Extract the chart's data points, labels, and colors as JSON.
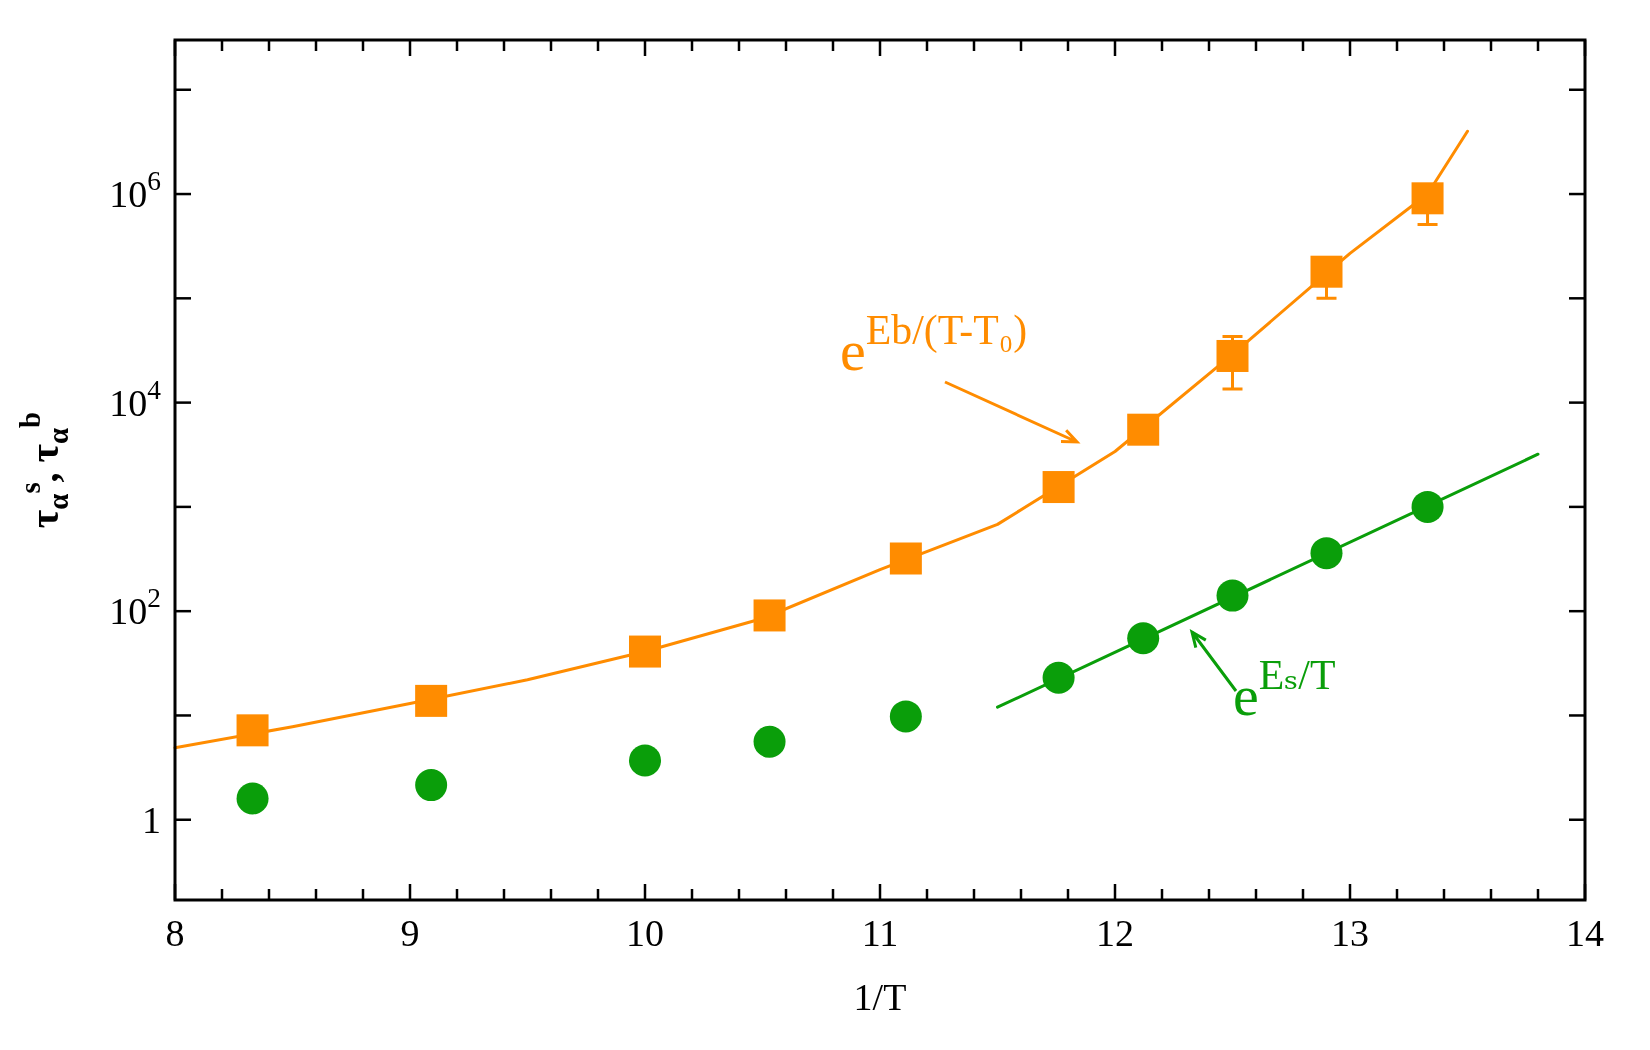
{
  "chart_data": {
    "type": "scatter",
    "xlabel": "1/T",
    "ylabel": "τ$_{α}$$^{s}$, τ$_{α}$$^{b}$",
    "log": "y",
    "grid": false,
    "xlim": [
      8,
      14
    ],
    "ylim": [
      0.17,
      30000000
    ],
    "xticks": [
      8,
      {
        "value": 8.2,
        "label": null
      },
      {
        "value": 8.4,
        "label": null
      },
      {
        "value": 8.6,
        "label": null
      },
      {
        "value": 8.8,
        "label": null
      },
      9,
      {
        "value": 9.2,
        "label": null
      },
      {
        "value": 9.4,
        "label": null
      },
      {
        "value": 9.6,
        "label": null
      },
      {
        "value": 9.8,
        "label": null
      },
      10,
      {
        "value": 10.2,
        "label": null
      },
      {
        "value": 10.4,
        "label": null
      },
      {
        "value": 10.6,
        "label": null
      },
      {
        "value": 10.8,
        "label": null
      },
      11,
      {
        "value": 11.2,
        "label": null
      },
      {
        "value": 11.4,
        "label": null
      },
      {
        "value": 11.6,
        "label": null
      },
      {
        "value": 11.8,
        "label": null
      },
      12,
      {
        "value": 12.2,
        "label": null
      },
      {
        "value": 12.4,
        "label": null
      },
      {
        "value": 12.6,
        "label": null
      },
      {
        "value": 12.8,
        "label": null
      },
      13,
      {
        "value": 13.2,
        "label": null
      },
      {
        "value": 13.4,
        "label": null
      },
      {
        "value": 13.6,
        "label": null
      },
      {
        "value": 13.8,
        "label": null
      },
      14
    ],
    "yticks": [
      1,
      {
        "value": 10,
        "label": null
      },
      {
        "value": 100,
        "label": "10$^{2}$"
      },
      {
        "value": 1000,
        "label": null
      },
      {
        "value": 10000,
        "label": "10$^{4}$"
      },
      {
        "value": 100000,
        "label": null
      },
      {
        "value": 1000000,
        "label": "10$^{6}$"
      },
      {
        "value": 10000000,
        "label": null
      }
    ],
    "series": [
      {
        "type": "line",
        "color": "#ff8c00",
        "line_style": "solid",
        "x": [
          8,
          8.5,
          9,
          9.5,
          10,
          10.5,
          11,
          11.5,
          12,
          12.5,
          13,
          13.33,
          13.5
        ],
        "values": [
          4.9,
          7.8,
          13,
          22,
          41,
          85,
          250,
          680,
          3400,
          29000,
          270000,
          1000000,
          4000000
        ]
      },
      {
        "type": "line",
        "color": "#0a9e0a",
        "line_style": "solid",
        "x": [
          11.5,
          13.8
        ],
        "values": [
          12,
          3200
        ]
      },
      {
        "color": "#ff8c00",
        "marker": "square",
        "x": [
          8.33,
          9.09,
          10,
          10.53,
          11.11,
          11.76,
          12.12,
          12.5,
          12.9,
          13.33
        ],
        "values": [
          7.2,
          13.8,
          41,
          91,
          320,
          1550,
          5500,
          28000,
          180000,
          910000
        ],
        "errors": [
          null,
          null,
          null,
          null,
          null,
          null,
          null,
          [
            13500,
            43000
          ],
          [
            100000,
            240000
          ],
          [
            510000,
            1200000
          ]
        ]
      },
      {
        "color": "#0a9e0a",
        "marker": "circle",
        "x": [
          8.33,
          9.09,
          10,
          10.53,
          11.11,
          11.76,
          12.12,
          12.5,
          12.9,
          13.33
        ],
        "values": [
          1.6,
          2.15,
          3.7,
          5.6,
          9.8,
          23,
          55,
          141,
          360,
          1000
        ]
      }
    ],
    "annotations": [
      "e$^{Eb/(T-T₀)}$",
      "e$^{Eₛ/T}$"
    ]
  }
}
